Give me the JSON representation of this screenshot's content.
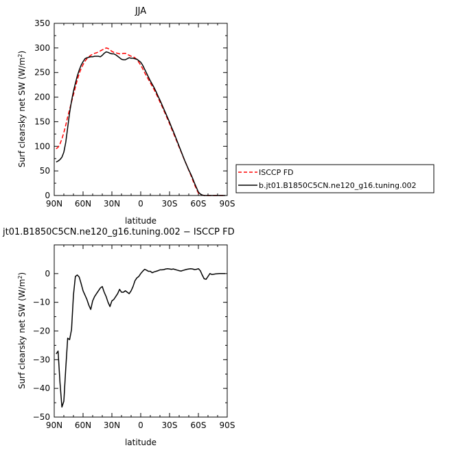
{
  "chart_data": [
    {
      "type": "line",
      "title": "JJA",
      "xlabel": "latitude",
      "ylabel": "Surf clearsky net SW (W/m²)",
      "ylabel_parts": {
        "main": "Surf clearsky net SW (W/m",
        "sup": "2",
        "close": ")"
      },
      "xlim": [
        90,
        -90
      ],
      "ylim": [
        0,
        350
      ],
      "xticks": [
        90,
        60,
        30,
        0,
        -30,
        -60,
        -90
      ],
      "xtick_labels": [
        "90N",
        "60N",
        "30N",
        "0",
        "30S",
        "60S",
        "90S"
      ],
      "yticks": [
        0,
        50,
        100,
        150,
        200,
        250,
        300,
        350
      ],
      "ytick_labels": [
        "0",
        "50",
        "100",
        "150",
        "200",
        "250",
        "300",
        "350"
      ],
      "legend_placement": "right",
      "series": [
        {
          "name": "ISCCP FD",
          "color": "#ff0000",
          "dash": "dashed",
          "x": [
            88,
            86,
            84,
            82,
            80,
            78,
            76,
            74,
            72,
            70,
            68,
            66,
            64,
            62,
            60,
            58,
            56,
            54,
            52,
            50,
            48,
            46,
            44,
            42,
            40,
            38,
            36,
            34,
            32,
            30,
            28,
            26,
            24,
            22,
            20,
            18,
            16,
            14,
            12,
            10,
            8,
            6,
            4,
            2,
            0,
            -2,
            -4,
            -6,
            -8,
            -10,
            -12,
            -14,
            -16,
            -18,
            -20,
            -22,
            -24,
            -26,
            -28,
            -30,
            -32,
            -34,
            -36,
            -38,
            -40,
            -42,
            -44,
            -46,
            -48,
            -50,
            -52,
            -54,
            -56,
            -58,
            -60,
            -62,
            -64,
            -66,
            -68,
            -70,
            -72,
            -74,
            -76,
            -78,
            -80,
            -82,
            -84,
            -86,
            -88
          ],
          "y": [
            95,
            98,
            105,
            115,
            128,
            143,
            160,
            175,
            190,
            205,
            220,
            235,
            248,
            258,
            266,
            273,
            278,
            282,
            285,
            287,
            289,
            290,
            292,
            294,
            296,
            298,
            300,
            299,
            296,
            293,
            291,
            290,
            289,
            288,
            288,
            289,
            289,
            287,
            285,
            283,
            282,
            280,
            276,
            271,
            265,
            258,
            250,
            243,
            236,
            229,
            222,
            215,
            207,
            199,
            190,
            182,
            173,
            164,
            155,
            146,
            136,
            127,
            117,
            108,
            98,
            89,
            79,
            70,
            61,
            51,
            42,
            32,
            22,
            13,
            5,
            2,
            1,
            0,
            0,
            0,
            0,
            0,
            0,
            0,
            0,
            0,
            0,
            0,
            0
          ]
        },
        {
          "name": "b.jt01.B1850C5CN.ne120_g16.tuning.002",
          "color": "#000000",
          "dash": "solid",
          "x": [
            88,
            86,
            84,
            82,
            80,
            78,
            76,
            74,
            72,
            70,
            68,
            66,
            64,
            62,
            60,
            58,
            56,
            54,
            52,
            50,
            48,
            46,
            44,
            42,
            40,
            38,
            36,
            34,
            32,
            30,
            28,
            26,
            24,
            22,
            20,
            18,
            16,
            14,
            12,
            10,
            8,
            6,
            4,
            2,
            0,
            -2,
            -4,
            -6,
            -8,
            -10,
            -12,
            -14,
            -16,
            -18,
            -20,
            -22,
            -24,
            -26,
            -28,
            -30,
            -32,
            -34,
            -36,
            -38,
            -40,
            -42,
            -44,
            -46,
            -48,
            -50,
            -52,
            -54,
            -56,
            -58,
            -60,
            -62,
            -64,
            -66,
            -68,
            -70,
            -72,
            -74,
            -76,
            -78,
            -80,
            -82,
            -84,
            -86,
            -88
          ],
          "y": [
            68,
            70,
            73,
            78,
            88,
            108,
            138,
            168,
            192,
            212,
            228,
            243,
            255,
            265,
            272,
            278,
            280,
            281,
            282,
            282,
            283,
            283,
            283,
            282,
            285,
            289,
            292,
            291,
            289,
            288,
            288,
            286,
            283,
            280,
            277,
            276,
            276,
            278,
            280,
            279,
            279,
            278,
            277,
            274,
            271,
            265,
            257,
            249,
            241,
            233,
            226,
            219,
            211,
            202,
            194,
            185,
            176,
            167,
            158,
            149,
            139,
            130,
            120,
            110,
            100,
            90,
            80,
            70,
            61,
            52,
            44,
            35,
            25,
            16,
            7,
            3,
            1,
            0,
            0,
            0,
            0,
            0,
            0,
            0,
            0,
            0,
            0,
            0,
            0
          ]
        }
      ]
    },
    {
      "type": "line",
      "title": "jt01.B1850C5CN.ne120_g16.tuning.002 − ISCCP FD",
      "xlabel": "latitude",
      "ylabel": "Surf clearsky net SW (W/m²)",
      "ylabel_parts": {
        "main": "Surf clearsky net SW (W/m",
        "sup": "2",
        "close": ")"
      },
      "xlim": [
        90,
        -90
      ],
      "ylim": [
        -50,
        10
      ],
      "xticks": [
        90,
        60,
        30,
        0,
        -30,
        -60,
        -90
      ],
      "xtick_labels": [
        "90N",
        "60N",
        "30N",
        "0",
        "30S",
        "60S",
        "90S"
      ],
      "yticks": [
        -50,
        -40,
        -30,
        -20,
        -10,
        0
      ],
      "ytick_labels": [
        "−50",
        "−40",
        "−30",
        "−20",
        "−10",
        "0"
      ],
      "series": [
        {
          "color": "#000000",
          "dash": "solid",
          "x": [
            88,
            86,
            84,
            82,
            80,
            78,
            76,
            74,
            72,
            70,
            68,
            66,
            64,
            62,
            60,
            58,
            56,
            54,
            52,
            50,
            48,
            46,
            44,
            42,
            40,
            38,
            36,
            34,
            32,
            30,
            28,
            26,
            24,
            22,
            20,
            18,
            16,
            14,
            12,
            10,
            8,
            6,
            4,
            2,
            0,
            -2,
            -4,
            -6,
            -8,
            -10,
            -12,
            -14,
            -16,
            -18,
            -20,
            -22,
            -24,
            -26,
            -28,
            -30,
            -32,
            -34,
            -36,
            -38,
            -40,
            -42,
            -44,
            -46,
            -48,
            -50,
            -52,
            -54,
            -56,
            -58,
            -60,
            -62,
            -64,
            -66,
            -68,
            -70,
            -72,
            -74,
            -76,
            -78,
            -80,
            -82,
            -84,
            -86,
            -88
          ],
          "y": [
            -28,
            -27,
            -38,
            -46.5,
            -44.5,
            -33,
            -22.5,
            -23,
            -19.5,
            -7.5,
            -1,
            -0.5,
            -1.2,
            -3.5,
            -6,
            -7.5,
            -9,
            -11,
            -12.5,
            -9.5,
            -8,
            -7,
            -6,
            -5,
            -4.5,
            -6.5,
            -8,
            -10,
            -11.5,
            -9.5,
            -9,
            -8,
            -7,
            -5.5,
            -6.5,
            -6.5,
            -6,
            -6.5,
            -7,
            -6,
            -4.5,
            -2.5,
            -1.5,
            -1,
            0,
            0.8,
            1.5,
            1.2,
            0.8,
            0.8,
            0.3,
            0.6,
            0.8,
            1.0,
            1.3,
            1.3,
            1.4,
            1.6,
            1.7,
            1.6,
            1.5,
            1.6,
            1.4,
            1.2,
            1.0,
            0.9,
            1.1,
            1.3,
            1.5,
            1.6,
            1.7,
            1.6,
            1.4,
            1.5,
            1.7,
            1.0,
            -0.5,
            -1.8,
            -2,
            -1,
            0,
            -0.3,
            -0.2,
            -0.1,
            -0.05,
            0,
            0,
            0,
            0
          ]
        }
      ]
    }
  ]
}
